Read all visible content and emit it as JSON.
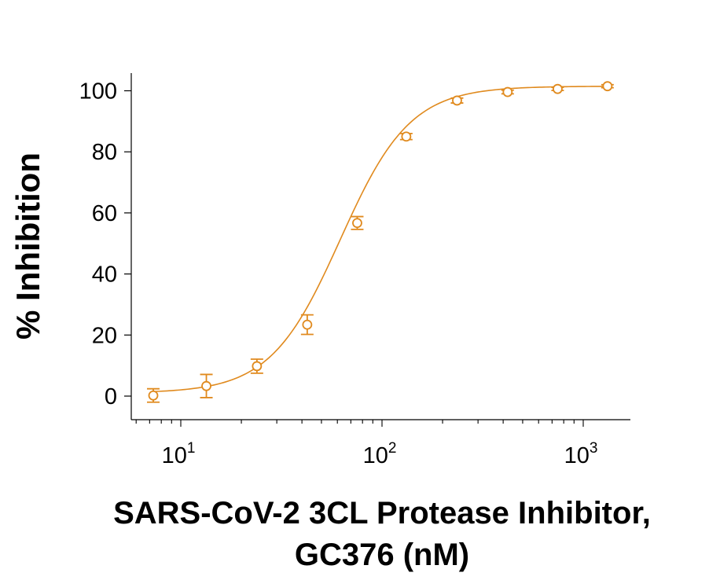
{
  "chart_data": {
    "type": "scatter",
    "ylabel": "% Inhibition",
    "xlabel_lines": [
      "SARS-CoV-2 3CL Protease Inhibitor,",
      "GC376 (nM)"
    ],
    "x_scale": "log10",
    "xlim": [
      6,
      1100
    ],
    "ylim": [
      -8,
      106
    ],
    "x_ticks": [
      {
        "value": 10,
        "base": "10",
        "exp": "1"
      },
      {
        "value": 100,
        "base": "10",
        "exp": "2"
      },
      {
        "value": 1000,
        "base": "10",
        "exp": "3"
      }
    ],
    "y_ticks": [
      0,
      20,
      40,
      60,
      80,
      100
    ],
    "color": "#e08a1e",
    "series": [
      {
        "marker": "open-circle",
        "points": [
          {
            "x": 7.3,
            "y": 0.2,
            "err": 2.2
          },
          {
            "x": 13.4,
            "y": 3.3,
            "err": 3.8
          },
          {
            "x": 23.9,
            "y": 9.8,
            "err": 2.3
          },
          {
            "x": 42.5,
            "y": 23.4,
            "err": 3.2
          },
          {
            "x": 75.3,
            "y": 56.7,
            "err": 2.1
          },
          {
            "x": 132,
            "y": 85.0,
            "err": 1.0
          },
          {
            "x": 236,
            "y": 96.8,
            "err": 0.8
          },
          {
            "x": 421,
            "y": 99.6,
            "err": 0.6
          },
          {
            "x": 746,
            "y": 100.6,
            "err": 0.5
          },
          {
            "x": 1320,
            "y": 101.5,
            "err": 0.5
          }
        ]
      }
    ],
    "fit": {
      "bottom": 1.0,
      "top": 101.5,
      "ec50": 62,
      "hill": 2.5
    }
  }
}
